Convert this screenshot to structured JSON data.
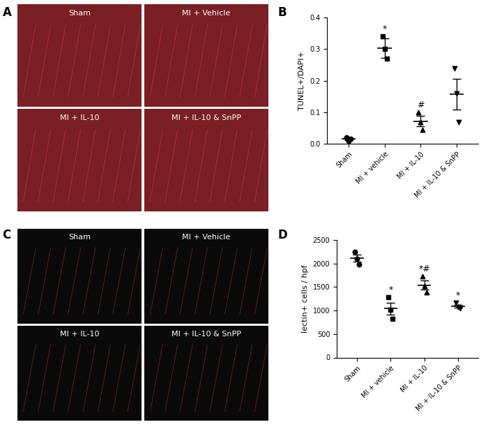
{
  "figure": {
    "panels": [
      {
        "letter": "A",
        "images": [
          "Sham",
          "MI + Vehicle",
          "MI + IL-10",
          "MI + IL-10 & SnPP"
        ]
      },
      {
        "letter": "B"
      },
      {
        "letter": "C",
        "images": [
          "Sham",
          "MI + Vehicle",
          "MI + IL-10",
          "MI + IL-10 & SnPP"
        ]
      },
      {
        "letter": "D"
      }
    ]
  },
  "chart_data": [
    {
      "type": "scatter",
      "y_label": "TUNEL+/DAPI+",
      "categories": [
        "Sham",
        "MI + vehicle",
        "MI + IL-10",
        "MI + IL-10 & SnPP"
      ],
      "points": [
        [
          0.02,
          0.01,
          0.015
        ],
        [
          0.34,
          0.3,
          0.27
        ],
        [
          0.1,
          0.07,
          0.045
        ],
        [
          0.24,
          0.16,
          0.07
        ]
      ],
      "means": [
        0.015,
        0.303,
        0.072,
        0.157
      ],
      "errors": [
        0.003,
        0.03,
        0.016,
        0.049
      ],
      "markers": [
        "o",
        "s",
        "^",
        "v"
      ],
      "annotations": [
        null,
        "*",
        "#",
        null
      ],
      "color": "#000000",
      "ylim": [
        0.0,
        0.4
      ],
      "yticks": [
        0.0,
        0.1,
        0.2,
        0.3,
        0.4
      ]
    },
    {
      "type": "scatter",
      "y_label": "lectin+ cells / hpf",
      "categories": [
        "Sham",
        "MI + vehicle",
        "MI + IL-10",
        "MI + IL-10 & SnPP"
      ],
      "points": [
        [
          2250,
          2100,
          1980
        ],
        [
          1280,
          1020,
          820
        ],
        [
          1720,
          1520,
          1380
        ],
        [
          1160,
          1080,
          1040
        ]
      ],
      "means": [
        2110,
        1040,
        1540,
        1090
      ],
      "errors": [
        80,
        130,
        100,
        35
      ],
      "markers": [
        "o",
        "s",
        "^",
        "v"
      ],
      "annotations": [
        null,
        "*",
        "*#",
        "*"
      ],
      "color": "#000000",
      "ylim": [
        0,
        2500
      ],
      "yticks": [
        0,
        500,
        1000,
        1500,
        2000,
        2500
      ]
    }
  ]
}
